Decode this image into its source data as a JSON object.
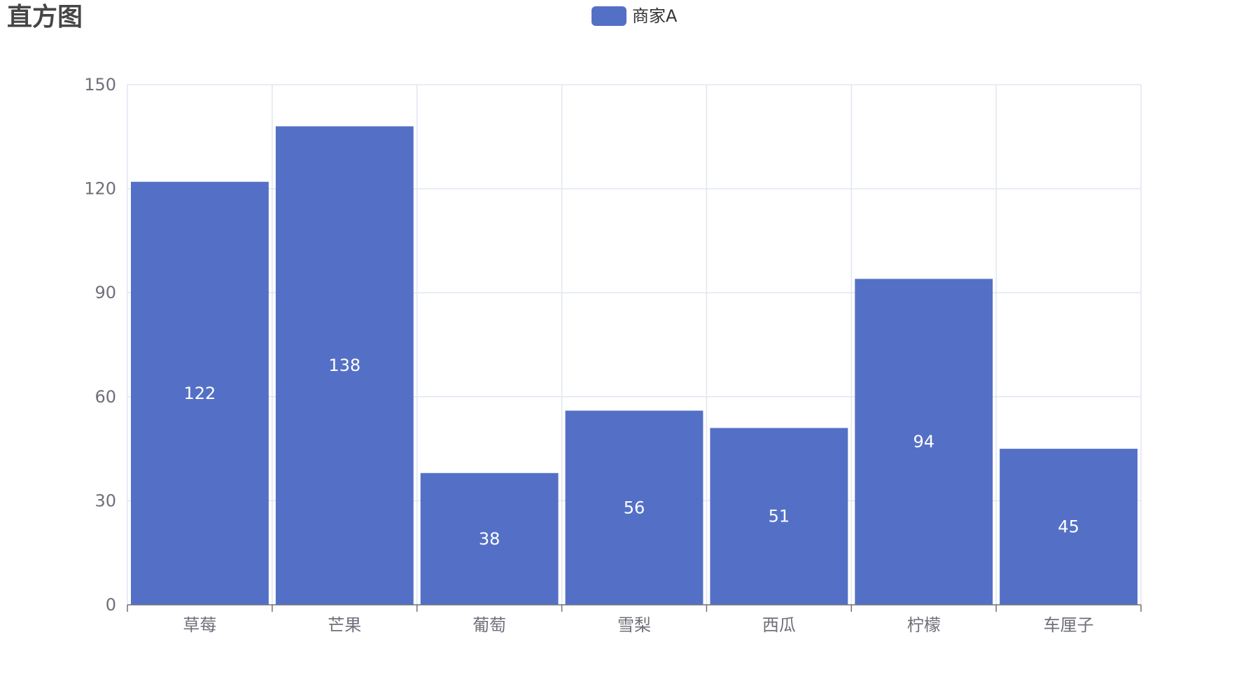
{
  "chart_data": {
    "type": "bar",
    "title": "直方图",
    "categories": [
      "草莓",
      "芒果",
      "葡萄",
      "雪梨",
      "西瓜",
      "柠檬",
      "车厘子"
    ],
    "series": [
      {
        "name": "商家A",
        "values": [
          122,
          138,
          38,
          56,
          51,
          94,
          45
        ],
        "color": "#5470c6"
      }
    ],
    "ylim": [
      0,
      150
    ],
    "yticks": [
      0,
      30,
      60,
      90,
      120,
      150
    ],
    "grid": true,
    "legend_position": "top-center",
    "data_labels": true
  }
}
